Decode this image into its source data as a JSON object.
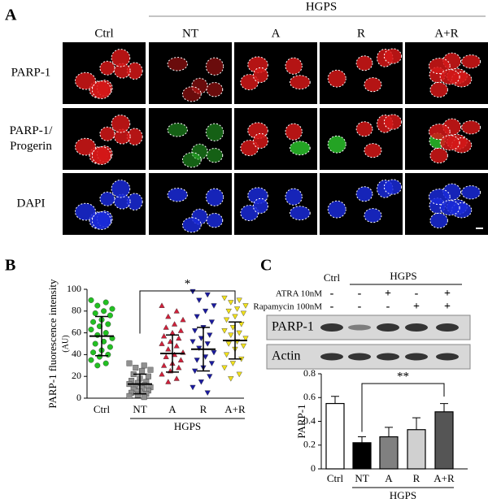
{
  "panel_labels": [
    "A",
    "B",
    "C"
  ],
  "panel_a": {
    "group_label": "HGPS",
    "columns": [
      "Ctrl",
      "NT",
      "A",
      "R",
      "A+R"
    ],
    "rows": [
      [
        "PARP-1"
      ],
      [
        "PARP-1/",
        "Progerin"
      ],
      [
        "DAPI"
      ]
    ]
  },
  "chart_data": [
    {
      "type": "dot",
      "y_label": "PARP-1 fluorescence intensity",
      "y_label_unit": "(AU)",
      "categories": [
        "Ctrl",
        "NT",
        "A",
        "R",
        "A+R"
      ],
      "group_label": "HGPS",
      "significance": "*",
      "colors": [
        "#22c022",
        "#909090",
        "#d0203a",
        "#1a1aa0",
        "#f2e21a"
      ],
      "markers": [
        "circle",
        "square",
        "triangle-up",
        "triangle-down",
        "triangle-down"
      ],
      "points": [
        [
          90,
          88,
          85,
          82,
          80,
          78,
          76,
          72,
          70,
          68,
          66,
          63,
          60,
          58,
          55,
          52,
          50,
          47,
          44,
          42,
          40,
          38,
          35,
          32,
          30
        ],
        [
          32,
          30,
          28,
          26,
          25,
          22,
          20,
          18,
          16,
          15,
          14,
          13,
          12,
          11,
          10,
          9,
          8,
          7,
          6,
          5,
          4,
          3,
          2,
          1
        ],
        [
          85,
          80,
          75,
          72,
          68,
          65,
          62,
          60,
          57,
          55,
          52,
          50,
          48,
          45,
          42,
          40,
          38,
          35,
          32,
          30,
          28,
          25,
          22,
          18,
          15
        ],
        [
          98,
          95,
          90,
          85,
          80,
          75,
          70,
          65,
          62,
          58,
          55,
          52,
          50,
          46,
          42,
          38,
          35,
          32,
          28,
          25,
          20,
          15,
          10,
          5
        ],
        [
          92,
          90,
          88,
          85,
          82,
          80,
          78,
          75,
          72,
          68,
          65,
          62,
          60,
          58,
          55,
          52,
          50,
          48,
          45,
          40,
          36,
          32,
          28,
          22,
          18
        ]
      ],
      "values": [
        57,
        13,
        41,
        45,
        53
      ],
      "errors": [
        18,
        9,
        17,
        20,
        17
      ],
      "ylim": [
        0,
        100
      ],
      "yticks": [
        0,
        20,
        40,
        60,
        80,
        100
      ]
    },
    {
      "type": "bar",
      "y_label": "PARP-1",
      "categories": [
        "Ctrl",
        "NT",
        "A",
        "R",
        "A+R"
      ],
      "group_label": "HGPS",
      "significance": "**",
      "colors": [
        "#ffffff",
        "#000000",
        "#808080",
        "#d0d0d0",
        "#555555"
      ],
      "values": [
        0.55,
        0.22,
        0.27,
        0.33,
        0.48
      ],
      "errors": [
        0.06,
        0.05,
        0.08,
        0.1,
        0.07
      ],
      "ylim": [
        0,
        0.8
      ],
      "yticks": [
        0,
        0.2,
        0.4,
        0.6,
        0.8
      ]
    }
  ],
  "blot": {
    "control": "Ctrl",
    "group_label": "HGPS",
    "treatments": [
      {
        "name": "ATRA 10nM",
        "signs": [
          "-",
          "-",
          "+",
          "-",
          "+"
        ]
      },
      {
        "name": "Rapamycin 100nM",
        "signs": [
          "-",
          "-",
          "-",
          "+",
          "+"
        ]
      }
    ],
    "bands": [
      "PARP-1",
      "Actin"
    ]
  }
}
